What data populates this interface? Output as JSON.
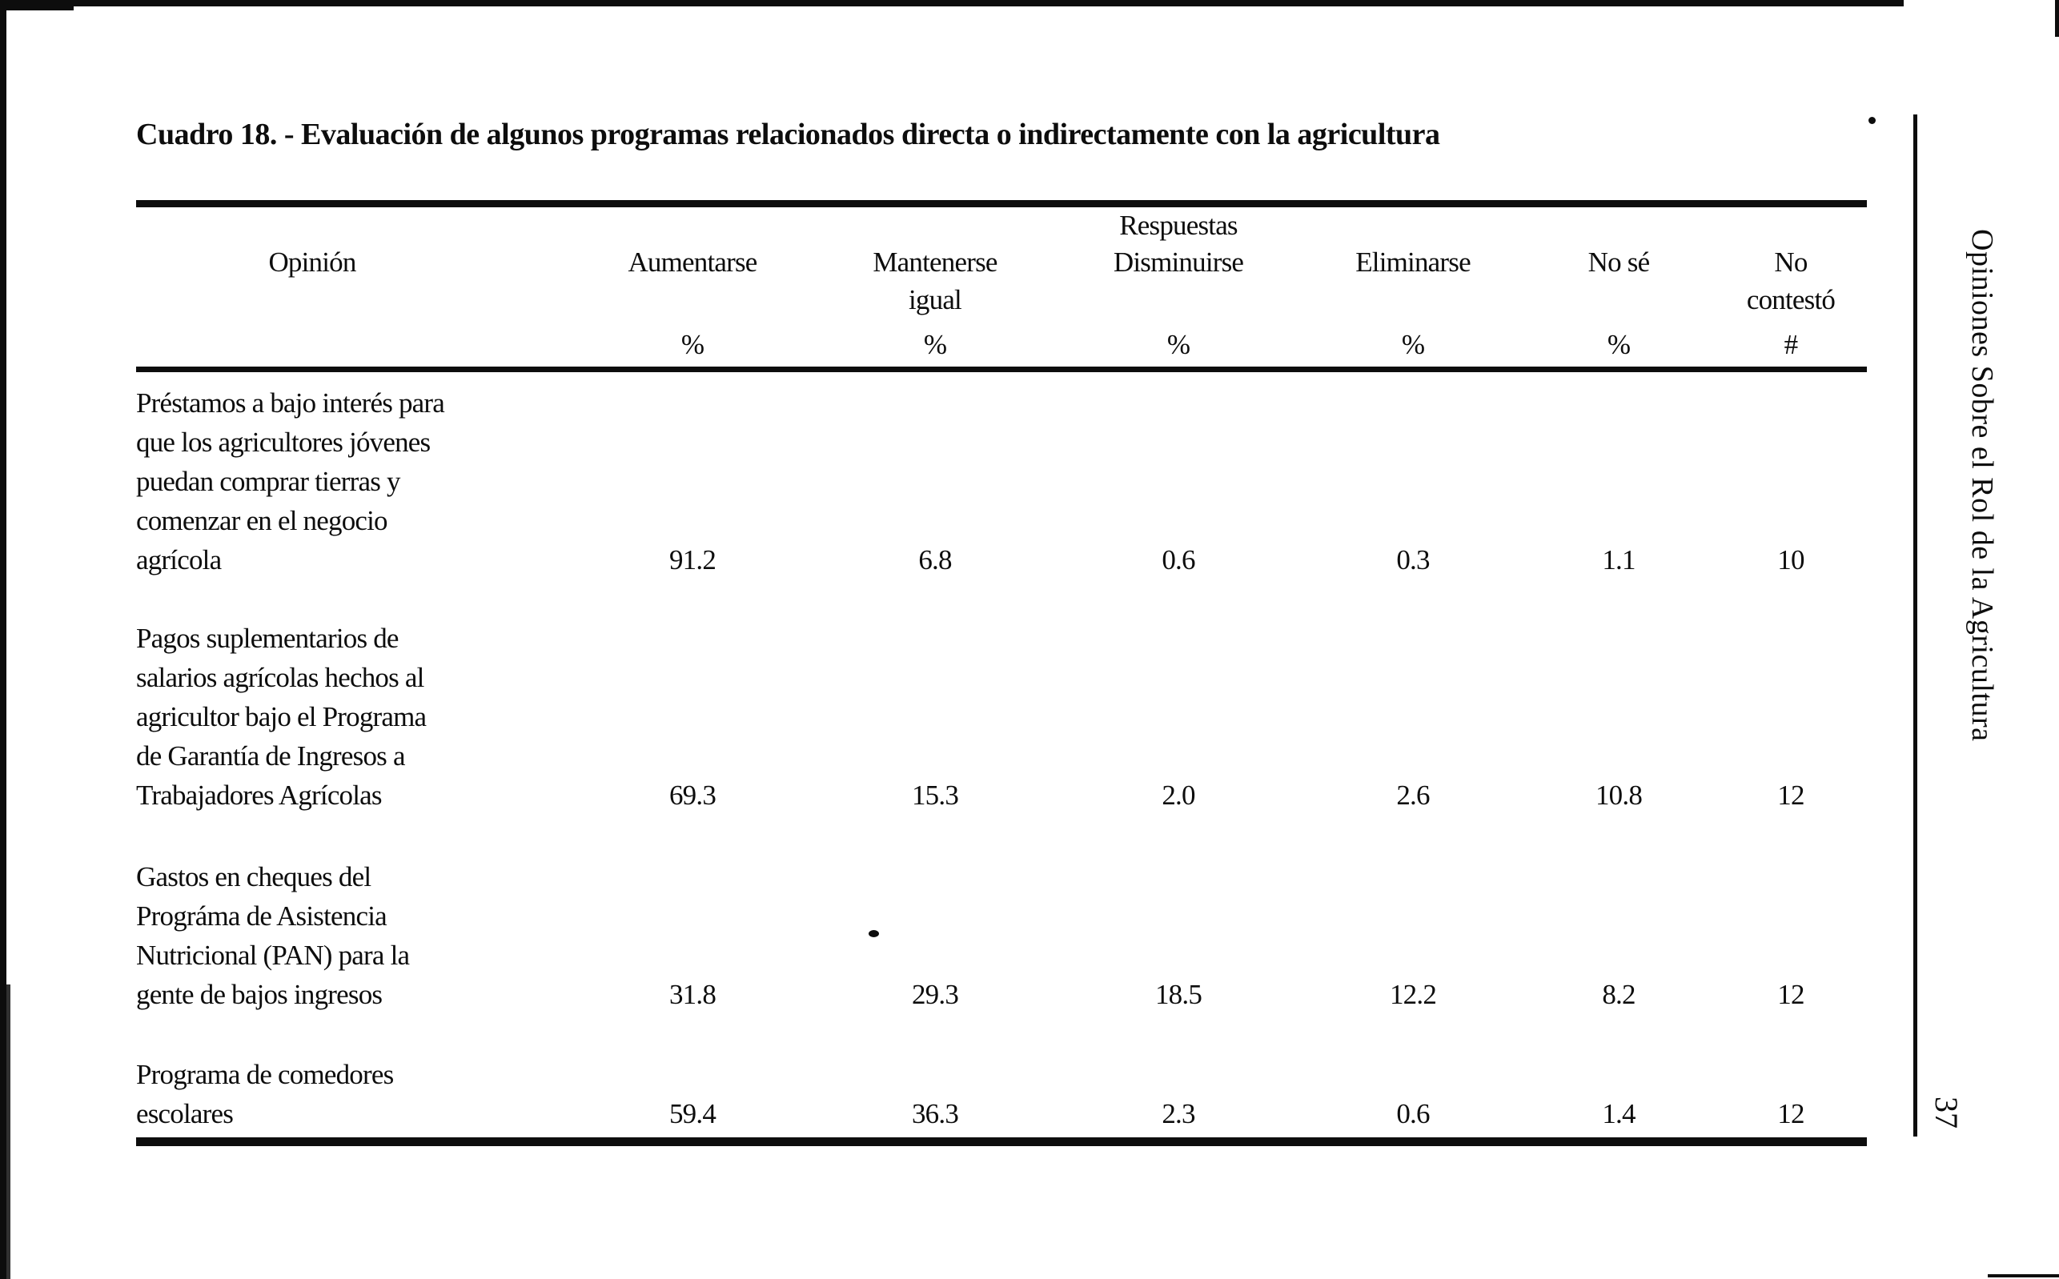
{
  "page": {
    "title": "Cuadro 18. - Evaluación de algunos programas relacionados directa o indirectamente con la agricultura",
    "sidebar_text": "Opiniones Sobre el Rol de la Agricultura",
    "page_number": "37"
  },
  "colors": {
    "ink": "#0d0d0d",
    "paper": "#ffffff"
  },
  "table": {
    "respuestas_label": "Respuestas",
    "columns": [
      {
        "label": "Opinión",
        "sub": "",
        "unit": ""
      },
      {
        "label": "Aumentarse",
        "sub": "",
        "unit": "%"
      },
      {
        "label": "Mantenerse",
        "sub": "igual",
        "unit": "%"
      },
      {
        "label": "Disminuirse",
        "sub": "",
        "unit": "%"
      },
      {
        "label": "Eliminarse",
        "sub": "",
        "unit": "%"
      },
      {
        "label": "No sé",
        "sub": "",
        "unit": "%"
      },
      {
        "label": "No",
        "sub": "contestó",
        "unit": "#"
      }
    ],
    "rows": [
      {
        "opinion_lines": [
          "Préstamos a bajo interés para",
          "que los agricultores jóvenes",
          "puedan comprar tierras y",
          "comenzar en el negocio",
          "agrícola"
        ],
        "values": [
          "91.2",
          "6.8",
          "0.6",
          "0.3",
          "1.1",
          "10"
        ]
      },
      {
        "opinion_lines": [
          "Pagos suplementarios de",
          "salarios agrícolas hechos al",
          "agricultor bajo el Programa",
          "de Garantía de Ingresos a",
          "Trabajadores Agrícolas"
        ],
        "values": [
          "69.3",
          "15.3",
          "2.0",
          "2.6",
          "10.8",
          "12"
        ]
      },
      {
        "opinion_lines": [
          "Gastos en cheques del",
          "Prográma de Asistencia",
          "Nutricional (PAN) para la",
          "gente de bajos ingresos"
        ],
        "values": [
          "31.8",
          "29.3",
          "18.5",
          "12.2",
          "8.2",
          "12"
        ]
      },
      {
        "opinion_lines": [
          "Programa de comedores",
          "escolares"
        ],
        "values": [
          "59.4",
          "36.3",
          "2.3",
          "0.6",
          "1.4",
          "12"
        ]
      }
    ]
  }
}
